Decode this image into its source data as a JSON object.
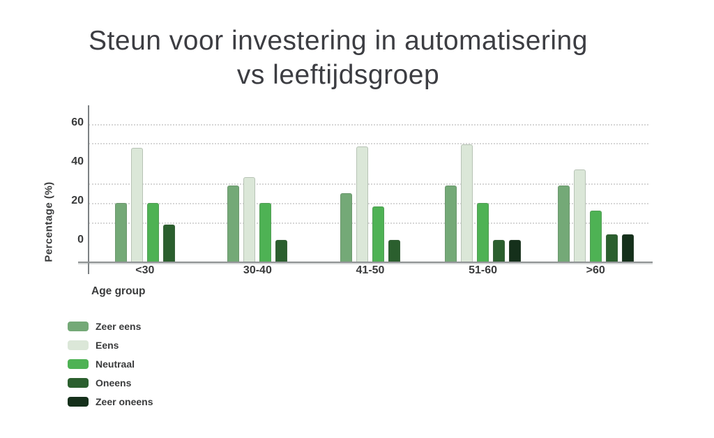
{
  "title": {
    "line1": "Steun voor investering in automatisering",
    "line2": "vs leeftijdsgroep"
  },
  "chart_data": {
    "type": "bar",
    "title": "Steun voor investering in automatisering vs leeftijdsgroep",
    "xlabel": "Age group",
    "ylabel": "Percentage (%)",
    "categories": [
      "<30",
      "30-40",
      "41-50",
      "51-60",
      ">60"
    ],
    "series": [
      {
        "name": "Zeer eens",
        "color": "#74a977",
        "values": [
          19,
          28,
          24,
          28,
          28
        ]
      },
      {
        "name": "Eens",
        "color": "#dbe7d8",
        "values": [
          47,
          32,
          48,
          49,
          36
        ]
      },
      {
        "name": "Neutraal",
        "color": "#4eb254",
        "values": [
          19,
          19,
          17,
          19,
          15
        ]
      },
      {
        "name": "Oneens",
        "color": "#2b5f2e",
        "values": [
          8,
          0,
          0,
          0,
          3
        ]
      },
      {
        "name": "Zeer oneens",
        "color": "#15301b",
        "values": [
          null,
          null,
          null,
          0,
          3
        ]
      }
    ],
    "yticks": [
      0,
      20,
      40,
      60
    ],
    "ylim": [
      0,
      68
    ],
    "grid": "dotted-horizontal",
    "legend_position": "bottom-left",
    "bar_style": "zero values render as short stub above baseline; null means bar absent"
  },
  "colors": {
    "background": "#ffffff",
    "text": "#3a3b3c",
    "title_text": "#3c3d42",
    "axis_line": "#8f9394",
    "gridline": "#c9c9c9"
  }
}
